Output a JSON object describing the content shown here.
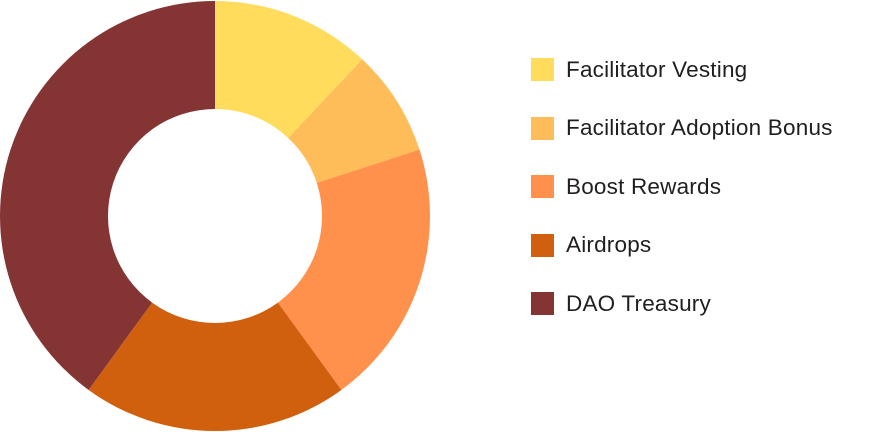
{
  "chart_data": {
    "type": "pie",
    "title": "",
    "categories": [
      "Facilitator Vesting",
      "Facilitator Adoption Bonus",
      "Boost Rewards",
      "Airdrops",
      "DAO Treasury"
    ],
    "values": [
      12,
      8,
      20,
      20,
      40
    ],
    "colors": [
      "#FFDC5C",
      "#FFBD59",
      "#FF914D",
      "#D0600E",
      "#853434"
    ],
    "donut": true,
    "legend_position": "right"
  }
}
